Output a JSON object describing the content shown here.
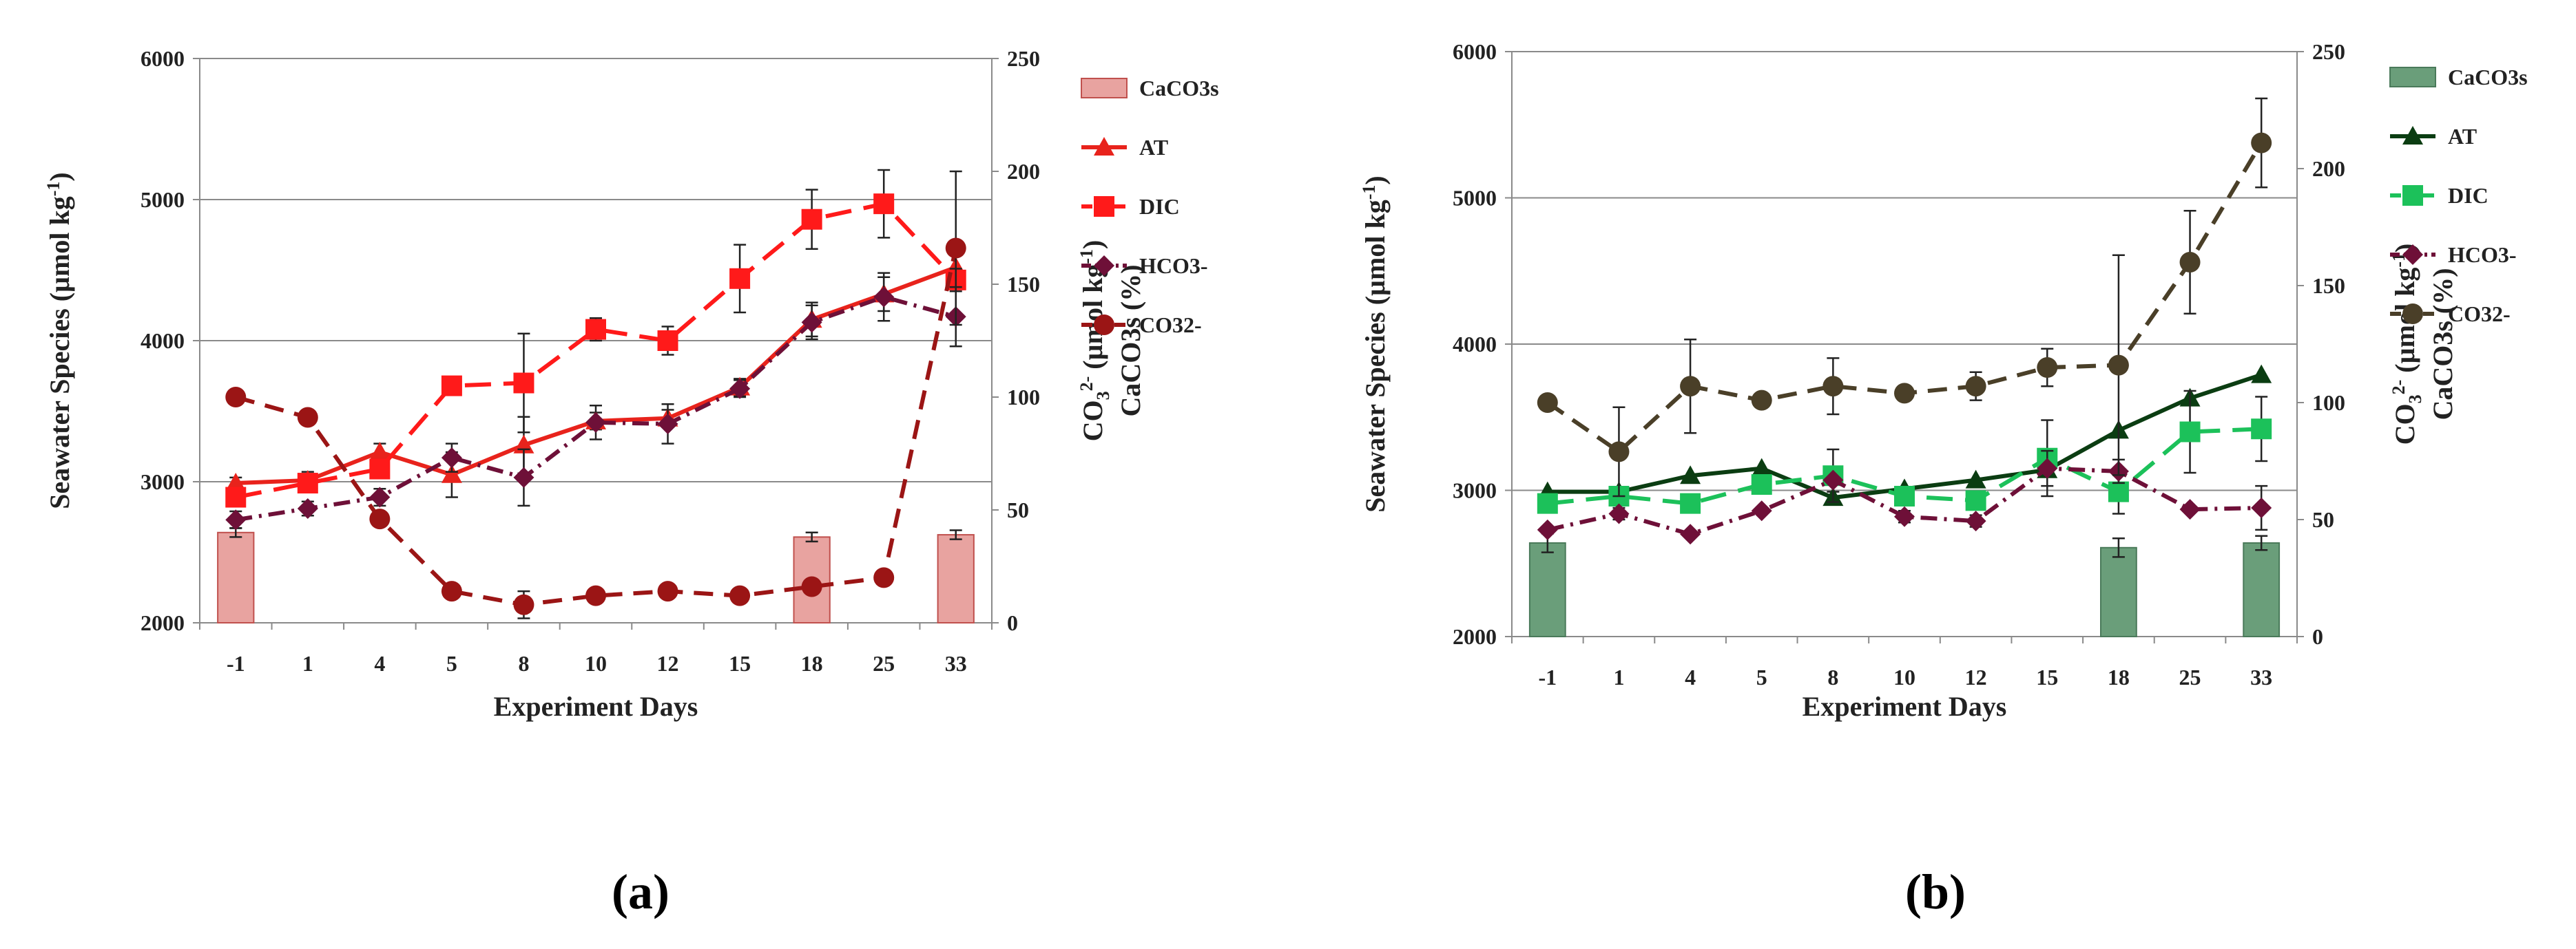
{
  "chart_data": [
    {
      "type": "line",
      "panel_label": "(a)",
      "xlabel": "Experiment Days",
      "ylabel_left": "Seawater Species (µmol kg-1)",
      "ylabel_left_parts": {
        "main": "Seawater  Species (µmol kg",
        "sup": "-1",
        "close": ")"
      },
      "ylabel_right_line1": {
        "main": "CO",
        "sub": "3",
        "sup": "2-",
        "rest": " (µmol kg",
        "sup2": "-1",
        "close": ")"
      },
      "ylabel_right_line2": "CaCO3s (%)",
      "ylim_left": [
        2000,
        6000
      ],
      "yticks_left": [
        2000,
        3000,
        4000,
        5000,
        6000
      ],
      "ylim_right": [
        0,
        250
      ],
      "yticks_right": [
        0,
        50,
        100,
        150,
        200,
        250
      ],
      "categories": [
        "-1",
        "1",
        "4",
        "5",
        "8",
        "10",
        "12",
        "15",
        "18",
        "25",
        "33"
      ],
      "grid": true,
      "legend_position": "right",
      "colors": {
        "bar": "#e8a3a0",
        "bar_edge": "#c0504d",
        "AT": "#e8231c",
        "DIC": "#ff1a1a",
        "HCO3": "#6e1038",
        "CO32": "#9b1515"
      },
      "series": [
        {
          "name": "CaCO3s",
          "kind": "bar",
          "axis": "right",
          "values": [
            40,
            null,
            null,
            null,
            null,
            null,
            null,
            null,
            38,
            null,
            39
          ],
          "errors": [
            2,
            null,
            null,
            null,
            null,
            null,
            null,
            null,
            2,
            null,
            2
          ]
        },
        {
          "name": "AT",
          "kind": "line",
          "axis": "left",
          "marker": "triangle",
          "dash": "solid",
          "values": [
            2990,
            3010,
            3210,
            3050,
            3260,
            3430,
            3450,
            3670,
            4150,
            4330,
            4520
          ],
          "errors": [
            40,
            60,
            60,
            160,
            200,
            60,
            60,
            60,
            120,
            120,
            120
          ]
        },
        {
          "name": "DIC",
          "kind": "line",
          "axis": "left",
          "marker": "square",
          "dash": "long",
          "values": [
            2890,
            2990,
            3090,
            3680,
            3700,
            4080,
            4000,
            4440,
            4860,
            4970,
            4430
          ],
          "errors": [
            60,
            60,
            60,
            60,
            350,
            80,
            100,
            240,
            210,
            240,
            80
          ]
        },
        {
          "name": "HCO3-",
          "kind": "line",
          "axis": "left",
          "marker": "diamond",
          "dash": "dashdot",
          "values": [
            2730,
            2810,
            2890,
            3170,
            3030,
            3420,
            3410,
            3660,
            4130,
            4310,
            4170
          ],
          "errors": [
            60,
            50,
            60,
            100,
            200,
            120,
            140,
            60,
            120,
            170,
            210
          ]
        },
        {
          "name": "CO32-",
          "kind": "line",
          "axis": "right",
          "marker": "circle",
          "dash": "dash",
          "values": [
            100,
            91,
            46,
            14,
            8,
            12,
            14,
            12,
            16,
            20,
            166
          ],
          "errors": [
            null,
            null,
            null,
            null,
            6,
            3,
            3,
            3,
            null,
            null,
            34
          ]
        }
      ]
    },
    {
      "type": "line",
      "panel_label": "(b)",
      "xlabel": "Experiment Days",
      "ylabel_left": "Seawater Species (µmol kg-1)",
      "ylabel_left_parts": {
        "main": "Seawater Species (µmol kg",
        "sup": "-1",
        "close": ")"
      },
      "ylabel_right_line1": {
        "main": "CO",
        "sub": "3",
        "sup": "2-",
        "rest": " (µmol kg",
        "sup2": "-1",
        "close": ")"
      },
      "ylabel_right_line2": "CaCO3s (%)",
      "ylim_left": [
        2000,
        6000
      ],
      "yticks_left": [
        2000,
        3000,
        4000,
        5000,
        6000
      ],
      "ylim_right": [
        0,
        250
      ],
      "yticks_right": [
        0,
        50,
        100,
        150,
        200,
        250
      ],
      "categories": [
        "-1",
        "1",
        "4",
        "5",
        "8",
        "10",
        "12",
        "15",
        "18",
        "25",
        "33"
      ],
      "grid": true,
      "legend_position": "right",
      "colors": {
        "bar": "#6a9e7a",
        "bar_edge": "#4a7a5a",
        "AT": "#0b3d12",
        "DIC": "#1cc15a",
        "HCO3": "#6e1038",
        "CO32": "#4a3f28"
      },
      "series": [
        {
          "name": "CaCO3s",
          "kind": "bar",
          "axis": "right",
          "values": [
            40,
            null,
            null,
            null,
            null,
            null,
            null,
            null,
            38,
            null,
            40
          ],
          "errors": [
            4,
            null,
            null,
            null,
            null,
            null,
            null,
            null,
            4,
            null,
            3
          ]
        },
        {
          "name": "AT",
          "kind": "line",
          "axis": "left",
          "marker": "triangle",
          "dash": "solid",
          "values": [
            2990,
            2990,
            3100,
            3150,
            2950,
            3010,
            3070,
            3140,
            3410,
            3630,
            3790
          ],
          "errors": [
            null,
            null,
            null,
            null,
            40,
            null,
            null,
            null,
            null,
            null,
            null
          ]
        },
        {
          "name": "DIC",
          "kind": "line",
          "axis": "left",
          "marker": "square",
          "dash": "long",
          "values": [
            2910,
            2960,
            2910,
            3040,
            3100,
            2960,
            2930,
            3220,
            2990,
            3400,
            3420
          ],
          "errors": [
            null,
            null,
            null,
            null,
            180,
            null,
            null,
            260,
            150,
            280,
            220
          ]
        },
        {
          "name": "HCO3-",
          "kind": "line",
          "axis": "left",
          "marker": "diamond",
          "dash": "dashdot",
          "values": [
            2730,
            2840,
            2700,
            2860,
            3070,
            2820,
            2790,
            3150,
            3130,
            2870,
            2880
          ],
          "errors": [
            null,
            40,
            null,
            null,
            null,
            40,
            40,
            120,
            80,
            null,
            150
          ]
        },
        {
          "name": "CO32-",
          "kind": "line",
          "axis": "right",
          "marker": "circle",
          "dash": "dash",
          "values": [
            100,
            79,
            107,
            101,
            107,
            104,
            107,
            115,
            116,
            160,
            211
          ],
          "errors": [
            null,
            19,
            20,
            null,
            12,
            null,
            6,
            8,
            47,
            22,
            19
          ]
        }
      ]
    }
  ]
}
